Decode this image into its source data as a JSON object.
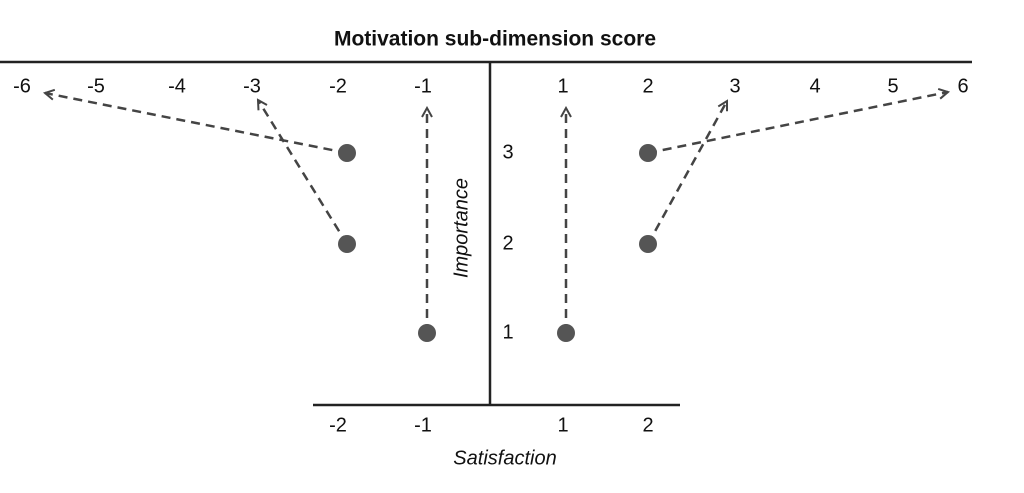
{
  "title": "Motivation sub-dimension score",
  "top_axis_labels": [
    "-6",
    "-5",
    "-4",
    "-3",
    "-2",
    "-1",
    "1",
    "2",
    "3",
    "4",
    "5",
    "6"
  ],
  "importance_labels": [
    "1",
    "2",
    "3"
  ],
  "importance_axis_label": "Importance",
  "satisfaction_labels": [
    "-2",
    "-1",
    "1",
    "2"
  ],
  "satisfaction_axis_label": "Satisfaction"
}
